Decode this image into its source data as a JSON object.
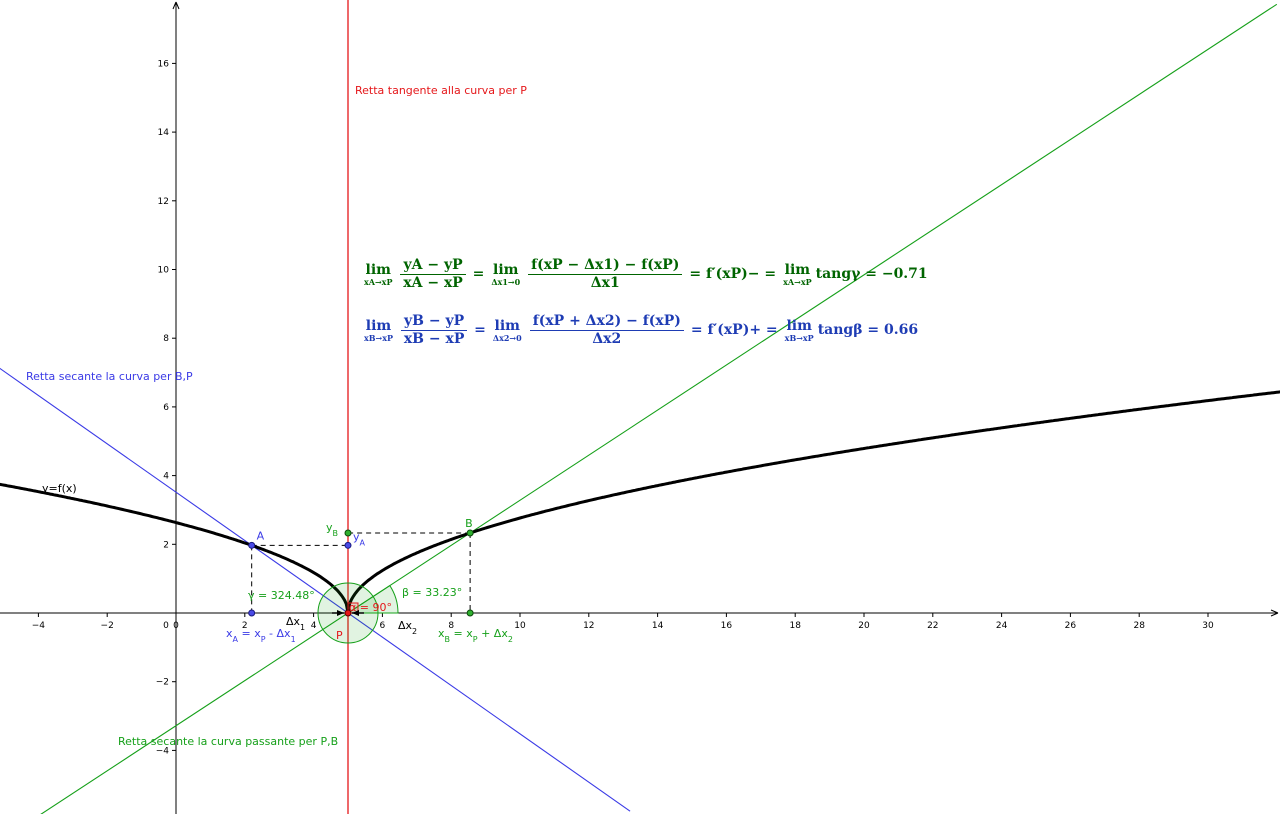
{
  "chart_data": {
    "type": "line",
    "xlim": [
      -5,
      32
    ],
    "ylim": [
      -5.8,
      17.8
    ],
    "x_ticks": [
      -4,
      -2,
      0,
      2,
      4,
      6,
      8,
      10,
      12,
      14,
      16,
      18,
      20,
      22,
      24,
      26,
      28,
      30
    ],
    "y_ticks": [
      -4,
      -2,
      2,
      4,
      6,
      8,
      10,
      12,
      14,
      16
    ],
    "origin_label": "0",
    "grid": false,
    "curve_label": "y=f(x)",
    "point_P": {
      "label": "P",
      "x": 5,
      "y": 0
    },
    "point_A": {
      "label": "A",
      "x": 2.2,
      "y": 1.97
    },
    "point_B": {
      "label": "B",
      "x": 8.55,
      "y": 2.33
    },
    "tangent_label": "Retta tangente alla curva per P",
    "secant_blue_label": "Retta secante la curva per B,P",
    "secant_green_label": "Retta secante la curva passante per P,B",
    "labels": {
      "yB": "y",
      "yB_sub": "B",
      "yA": "y",
      "yA_sub": "A",
      "dx1": "Δx",
      "dx1_sub": "1",
      "dx2": "Δx",
      "dx2_sub": "2",
      "xA_eq": "x",
      "xA_eq_sub": "A",
      "xA_eq_rest": " = x",
      "xA_eq_sub2": "P",
      "xA_eq_tail": " - Δx",
      "xA_eq_sub3": "1",
      "xB_eq": "x",
      "xB_eq_sub": "B",
      "xB_eq_rest": " = x",
      "xB_eq_sub2": "P",
      "xB_eq_tail": " + Δx",
      "xB_eq_sub3": "2",
      "gamma": "γ = 324.48°",
      "beta": "β = 33.23°",
      "alpha": "α = 90°"
    },
    "colors": {
      "curve": "#000000",
      "tangent": "#e5171a",
      "secant_blue": "#3a3ae6",
      "secant_green": "#16a01a",
      "formula_green": "#006400",
      "formula_blue": "#1e3cb4"
    }
  },
  "formula_left": {
    "lim": "lim",
    "lim_sub_A": "xA→xP",
    "frac_A_num": "yA − yP",
    "frac_A_den": "xA − xP",
    "eq1": "=",
    "lim_sub_dx1": "Δx1→0",
    "frac_dx1_num": "f(xP − Δx1) − f(xP)",
    "frac_dx1_den": "Δx1",
    "eq2": "= f′(xP)− =",
    "tang_A": "tangγ = −0.71"
  },
  "formula_right": {
    "lim": "lim",
    "lim_sub_B": "xB→xP",
    "frac_B_num": "yB − yP",
    "frac_B_den": "xB − xP",
    "eq1": "=",
    "lim_sub_dx2": "Δx2→0",
    "frac_dx2_num": "f(xP + Δx2) − f(xP)",
    "frac_dx2_den": "Δx2",
    "eq2": "= f′(xP)+ =",
    "tang_B": "tangβ = 0.66"
  }
}
